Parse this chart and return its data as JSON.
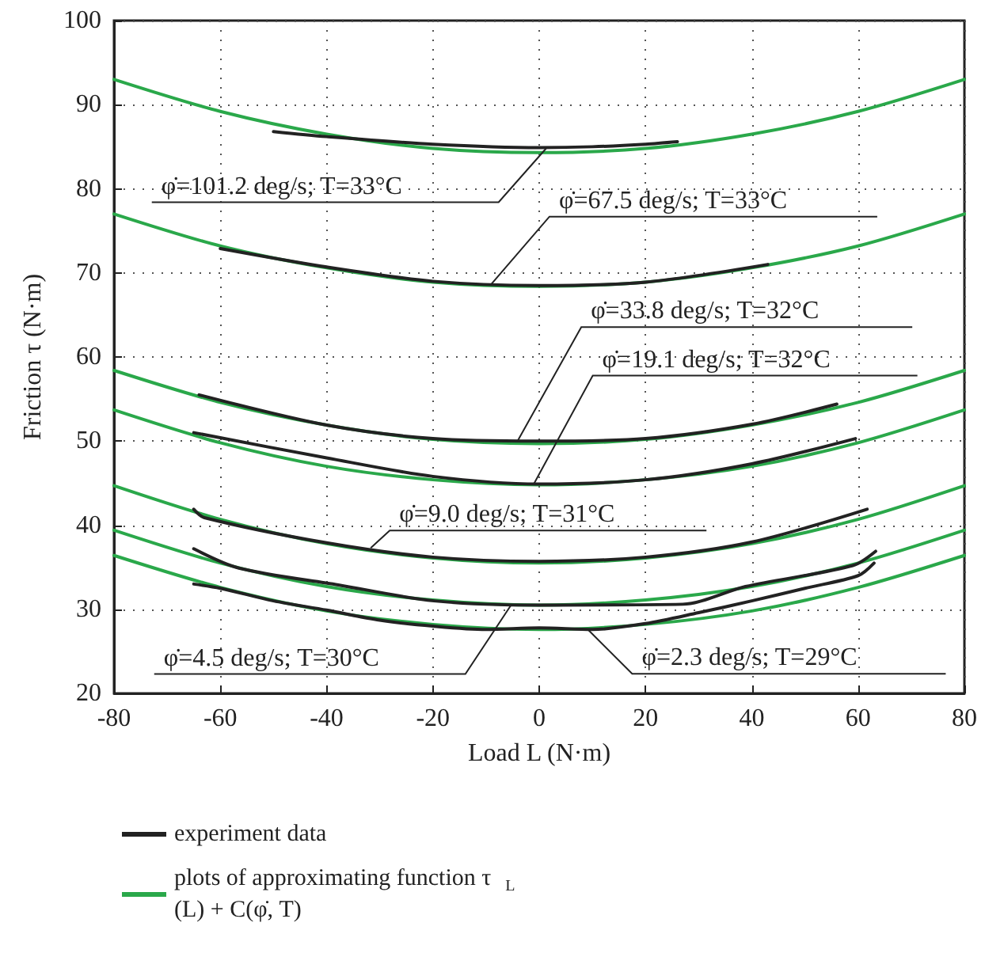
{
  "chart_data": {
    "type": "line",
    "xlabel": "Load L (N·m)",
    "ylabel": "Friction τ (N·m)",
    "xlim": [
      -80,
      80
    ],
    "ylim": [
      20,
      100
    ],
    "xticks": [
      -80,
      -60,
      -40,
      -20,
      0,
      20,
      40,
      60,
      80
    ],
    "yticks": [
      20,
      30,
      40,
      50,
      60,
      70,
      80,
      90,
      100
    ],
    "grid": true,
    "legend": "bottom",
    "marker": "none",
    "series": [
      {
        "name": "experiment data",
        "color": "#222222",
        "x": [
          -50,
          -40,
          -20,
          0,
          10,
          20,
          26
        ],
        "values": [
          86.8,
          86.2,
          85.3,
          84.9,
          85.0,
          85.3,
          85.6
        ]
      },
      {
        "color": "#222222",
        "x": [
          -60,
          -40,
          -20,
          0,
          20,
          43
        ],
        "values": [
          72.9,
          70.7,
          69.0,
          68.5,
          68.9,
          71.0
        ]
      },
      {
        "color": "#222222",
        "x": [
          -64,
          -40,
          -20,
          0,
          20,
          40,
          56
        ],
        "values": [
          55.5,
          51.9,
          50.3,
          50.0,
          50.3,
          52.0,
          54.4
        ]
      },
      {
        "color": "#222222",
        "x": [
          -65,
          -40,
          -20,
          0,
          20,
          40,
          59.5
        ],
        "values": [
          51.0,
          48.0,
          45.8,
          44.9,
          45.4,
          47.3,
          50.3
        ]
      },
      {
        "color": "#222222",
        "x": [
          -65,
          -63,
          -40,
          -20,
          0,
          20,
          40,
          61.7
        ],
        "values": [
          41.9,
          40.9,
          37.9,
          36.2,
          35.7,
          36.2,
          38.0,
          41.9
        ]
      },
      {
        "color": "#222222",
        "x": [
          -65,
          -56.5,
          -37.8,
          -19.8,
          0,
          27,
          38.8,
          59,
          63.3
        ],
        "values": [
          37.2,
          34.9,
          32.9,
          31.0,
          30.5,
          30.6,
          32.7,
          35.2,
          36.9
        ]
      },
      {
        "color": "#222222",
        "x": [
          -65,
          -60,
          -50,
          -40,
          -30,
          -20,
          -10,
          0,
          10,
          20,
          30,
          40,
          50,
          60,
          63
        ],
        "values": [
          33.0,
          32.5,
          31.0,
          29.9,
          28.7,
          28.0,
          27.6,
          27.8,
          27.6,
          28.3,
          29.6,
          31.0,
          32.5,
          34.0,
          35.5
        ]
      },
      {
        "name": "plots of approximating function τ$_{L}$(L) + C(φ̇, T)",
        "color": "#2aa84a",
        "x": [
          -80,
          -60,
          -40,
          -20,
          0,
          20,
          40,
          60,
          80
        ],
        "values": [
          93.0,
          89.2,
          86.5,
          84.8,
          84.3,
          84.8,
          86.5,
          89.2,
          93.0
        ]
      },
      {
        "color": "#2aa84a",
        "x": [
          -80,
          -60,
          -40,
          -20,
          0,
          20,
          40,
          60,
          80
        ],
        "values": [
          77.0,
          73.2,
          70.6,
          68.9,
          68.4,
          68.9,
          70.6,
          73.2,
          77.0
        ]
      },
      {
        "color": "#2aa84a",
        "x": [
          -80,
          -60,
          -40,
          -20,
          0,
          20,
          40,
          60,
          80
        ],
        "values": [
          58.4,
          54.6,
          51.9,
          50.2,
          49.7,
          50.2,
          51.9,
          54.6,
          58.4
        ]
      },
      {
        "color": "#2aa84a",
        "x": [
          -80,
          -60,
          -40,
          -20,
          0,
          20,
          40,
          60,
          80
        ],
        "values": [
          53.7,
          49.8,
          47.0,
          45.4,
          44.8,
          45.4,
          47.0,
          49.8,
          53.7
        ]
      },
      {
        "color": "#2aa84a",
        "x": [
          -80,
          -60,
          -40,
          -20,
          0,
          20,
          40,
          60,
          80
        ],
        "values": [
          44.7,
          40.7,
          37.8,
          36.1,
          35.5,
          36.1,
          37.8,
          40.7,
          44.7
        ]
      },
      {
        "color": "#2aa84a",
        "x": [
          -80,
          -60,
          -40,
          -20,
          0,
          20,
          40,
          60,
          80
        ],
        "values": [
          39.4,
          35.5,
          32.7,
          31.1,
          30.5,
          31.1,
          32.7,
          35.5,
          39.4
        ]
      },
      {
        "color": "#2aa84a",
        "x": [
          -80,
          -60,
          -40,
          -20,
          0,
          20,
          40,
          60,
          80
        ],
        "values": [
          36.4,
          32.6,
          29.8,
          28.2,
          27.6,
          28.2,
          29.8,
          32.6,
          36.4
        ]
      }
    ],
    "annotations": [
      {
        "text": "φ̇=101.2 deg/s; T=33°C",
        "x": 1.3,
        "y": 84.8
      },
      {
        "text": "φ̇=67.5 deg/s; T=33°C",
        "x": -9.1,
        "y": 68.6
      },
      {
        "text": "φ̇=33.8 deg/s; T=32°C",
        "x": -4.0,
        "y": 50.1
      },
      {
        "text": "φ̇=19.1 deg/s; T=32°C",
        "x": -1.1,
        "y": 44.8
      },
      {
        "text": "φ̇=9.0 deg/s; T=31°C",
        "x": -31.7,
        "y": 37.3
      },
      {
        "text": "φ̇=4.5 deg/s; T=30°C",
        "x": -5.4,
        "y": 30.4
      },
      {
        "text": "φ̇=2.3 deg/s; T=29°C",
        "x": 9.3,
        "y": 27.5
      }
    ]
  }
}
